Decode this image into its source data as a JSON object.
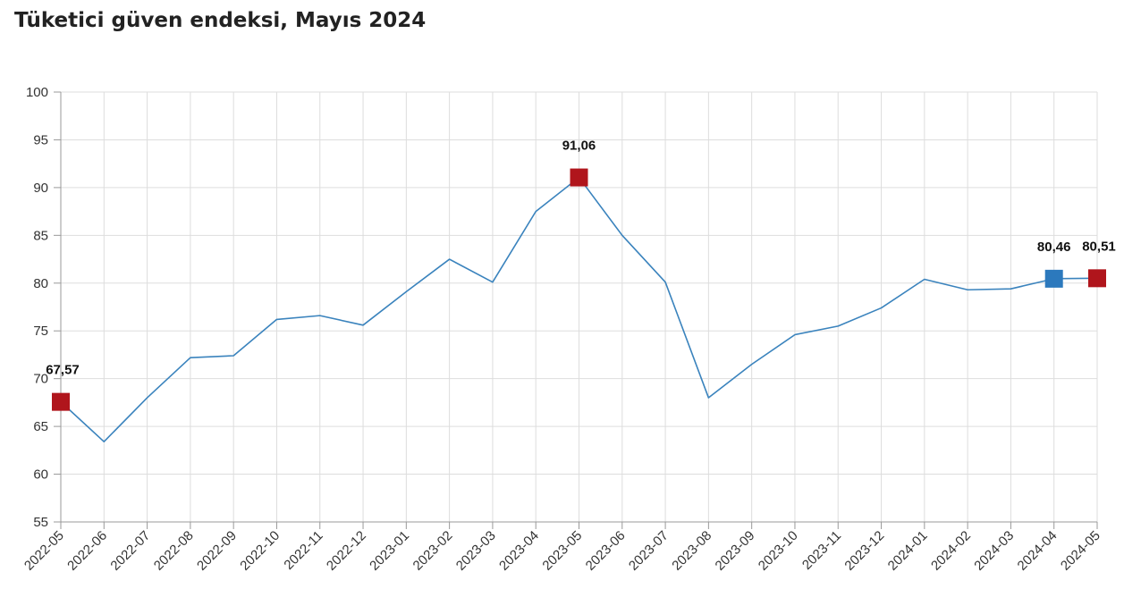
{
  "title": "Tüketici güven endeksi, Mayıs 2024",
  "colors": {
    "line": "#3a83bd",
    "highlight_red": "#b0151c",
    "highlight_blue": "#2c79bd",
    "grid": "#dddddd"
  },
  "chart_data": {
    "type": "line",
    "title": "Tüketici güven endeksi, Mayıs 2024",
    "xlabel": "",
    "ylabel": "",
    "ylim": [
      55,
      100
    ],
    "yticks": [
      "55",
      "60",
      "65",
      "70",
      "75",
      "80",
      "85",
      "90",
      "95",
      "100"
    ],
    "grid": true,
    "legend": "none",
    "categories": [
      "2022-05",
      "2022-06",
      "2022-07",
      "2022-08",
      "2022-09",
      "2022-10",
      "2022-11",
      "2022-12",
      "2023-01",
      "2023-02",
      "2023-03",
      "2023-04",
      "2023-05",
      "2023-06",
      "2023-07",
      "2023-08",
      "2023-09",
      "2023-10",
      "2023-11",
      "2023-12",
      "2024-01",
      "2024-02",
      "2024-03",
      "2024-04",
      "2024-05"
    ],
    "series": [
      {
        "values": [
          67.57,
          63.4,
          68.0,
          72.2,
          72.4,
          76.2,
          76.6,
          75.6,
          79.1,
          82.5,
          80.1,
          87.5,
          91.06,
          85.0,
          80.1,
          68.0,
          71.5,
          74.6,
          75.5,
          77.4,
          80.4,
          79.3,
          79.4,
          80.46,
          80.51
        ]
      }
    ],
    "highlights": [
      {
        "index": 0,
        "label": "67,57",
        "color": "red"
      },
      {
        "index": 12,
        "label": "91,06",
        "color": "red"
      },
      {
        "index": 23,
        "label": "80,46",
        "color": "blue"
      },
      {
        "index": 24,
        "label": "80,51",
        "color": "red"
      }
    ]
  }
}
